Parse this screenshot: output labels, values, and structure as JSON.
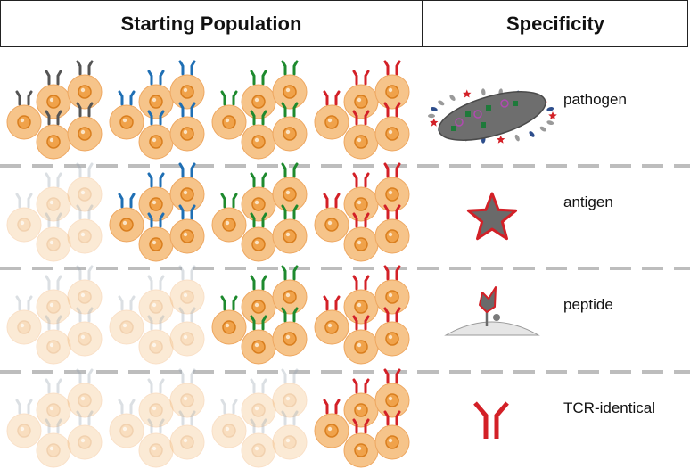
{
  "header": {
    "left": "Starting Population",
    "right": "Specificity"
  },
  "colors": {
    "cell_fill": "#F6C48A",
    "cell_stroke": "#EEA760",
    "nucleus_fill": "#F0A24A",
    "nucleus_stroke": "#D97E1E",
    "clones": [
      "#555555",
      "#1F6FB4",
      "#1E8A2E",
      "#D32027"
    ],
    "divider": "#BDBDBD"
  },
  "rows": [
    {
      "label": "pathogen",
      "icon": "pathogen-icon",
      "active": [
        true,
        true,
        true,
        true
      ]
    },
    {
      "label": "antigen",
      "icon": "antigen-star-icon",
      "active": [
        false,
        true,
        true,
        true
      ]
    },
    {
      "label": "peptide",
      "icon": "peptide-mhc-icon",
      "active": [
        false,
        false,
        true,
        true
      ]
    },
    {
      "label": "TCR-identical",
      "icon": "tcr-receptor-icon",
      "active": [
        false,
        false,
        false,
        true
      ]
    }
  ]
}
